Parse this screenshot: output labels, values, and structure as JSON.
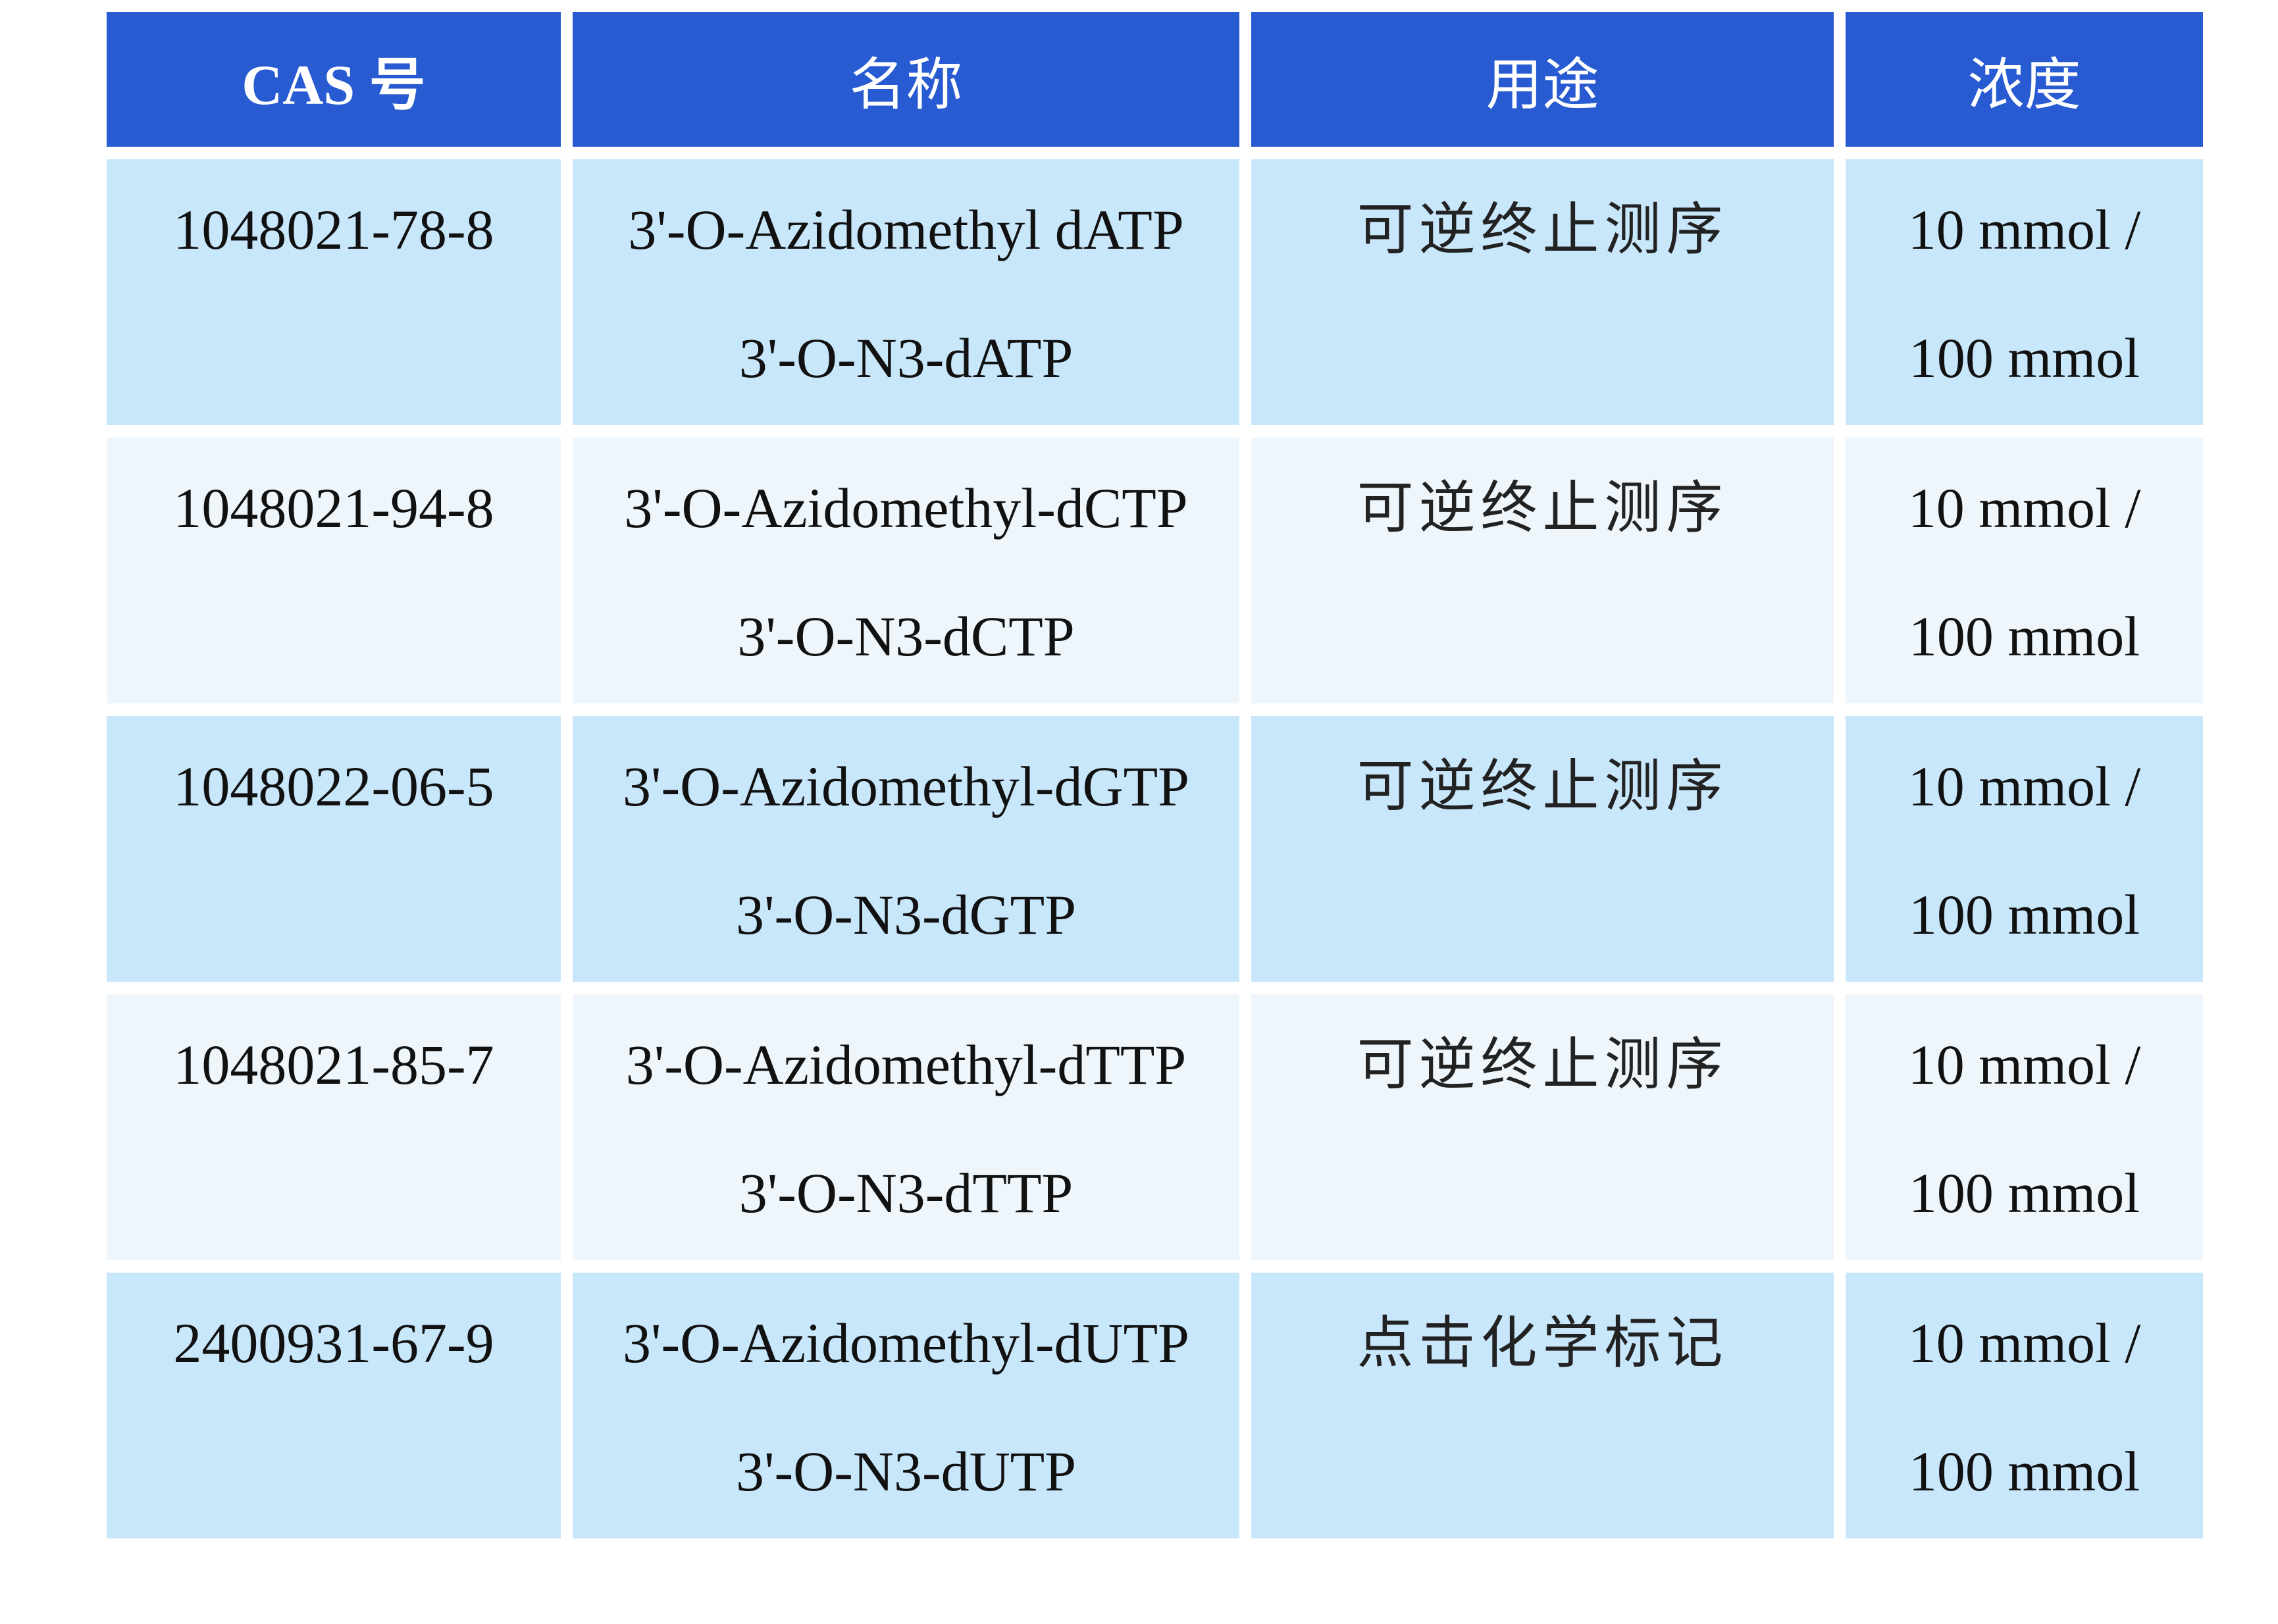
{
  "headers": [
    "CAS 号",
    "名称",
    "用途",
    "浓度"
  ],
  "rows": [
    {
      "cas": "1048021-78-8",
      "name": "3'-O-Azidomethyl dATP",
      "alias": "3'-O-N3-dATP",
      "use": "可逆终止测序",
      "conc1": "10 mmol /",
      "conc2": "100 mmol"
    },
    {
      "cas": "1048021-94-8",
      "name": "3'-O-Azidomethyl-dCTP",
      "alias": "3'-O-N3-dCTP",
      "use": "可逆终止测序",
      "conc1": "10 mmol /",
      "conc2": "100 mmol"
    },
    {
      "cas": "1048022-06-5",
      "name": "3'-O-Azidomethyl-dGTP",
      "alias": "3'-O-N3-dGTP",
      "use": "可逆终止测序",
      "conc1": "10 mmol /",
      "conc2": "100 mmol"
    },
    {
      "cas": "1048021-85-7",
      "name": "3'-O-Azidomethyl-dTTP",
      "alias": "3'-O-N3-dTTP",
      "use": "可逆终止测序",
      "conc1": "10 mmol /",
      "conc2": "100 mmol"
    },
    {
      "cas": "2400931-67-9",
      "name": "3'-O-Azidomethyl-dUTP",
      "alias": "3'-O-N3-dUTP",
      "use": "点击化学标记",
      "conc1": "10 mmol /",
      "conc2": "100 mmol"
    }
  ],
  "colors": {
    "header": "#285bd1",
    "row_odd": "#c9e7fb",
    "row_even": "#eef6fb"
  }
}
